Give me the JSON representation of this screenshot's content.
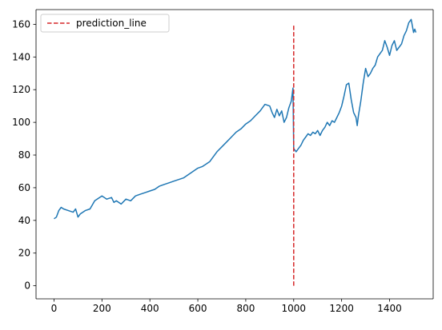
{
  "chart_data": {
    "type": "line",
    "title": "",
    "xlabel": "",
    "ylabel": "",
    "xlim": [
      -75,
      1582
    ],
    "ylim": [
      -8,
      169
    ],
    "xticks": [
      0,
      200,
      400,
      600,
      800,
      1000,
      1200,
      1400
    ],
    "yticks": [
      0,
      20,
      40,
      60,
      80,
      100,
      120,
      140,
      160
    ],
    "grid": false,
    "legend_position": "top-left",
    "series": [
      {
        "name": "",
        "color": "#1f77b4",
        "style": "solid",
        "points": [
          [
            0,
            41
          ],
          [
            10,
            42
          ],
          [
            20,
            46
          ],
          [
            30,
            48
          ],
          [
            40,
            47
          ],
          [
            60,
            46
          ],
          [
            80,
            45
          ],
          [
            90,
            47
          ],
          [
            100,
            42
          ],
          [
            110,
            44
          ],
          [
            130,
            46
          ],
          [
            150,
            47
          ],
          [
            170,
            52
          ],
          [
            190,
            54
          ],
          [
            200,
            55
          ],
          [
            220,
            53
          ],
          [
            240,
            54
          ],
          [
            250,
            51
          ],
          [
            260,
            52
          ],
          [
            280,
            50
          ],
          [
            300,
            53
          ],
          [
            320,
            52
          ],
          [
            340,
            55
          ],
          [
            360,
            56
          ],
          [
            380,
            57
          ],
          [
            400,
            58
          ],
          [
            420,
            59
          ],
          [
            440,
            61
          ],
          [
            460,
            62
          ],
          [
            480,
            63
          ],
          [
            500,
            64
          ],
          [
            520,
            65
          ],
          [
            540,
            66
          ],
          [
            560,
            68
          ],
          [
            580,
            70
          ],
          [
            600,
            72
          ],
          [
            620,
            73
          ],
          [
            640,
            75
          ],
          [
            650,
            76
          ],
          [
            660,
            78
          ],
          [
            680,
            82
          ],
          [
            700,
            85
          ],
          [
            720,
            88
          ],
          [
            740,
            91
          ],
          [
            760,
            94
          ],
          [
            780,
            96
          ],
          [
            800,
            99
          ],
          [
            820,
            101
          ],
          [
            840,
            104
          ],
          [
            860,
            107
          ],
          [
            880,
            111
          ],
          [
            900,
            110
          ],
          [
            910,
            106
          ],
          [
            920,
            103
          ],
          [
            930,
            108
          ],
          [
            940,
            104
          ],
          [
            950,
            107
          ],
          [
            960,
            100
          ],
          [
            970,
            103
          ],
          [
            980,
            109
          ],
          [
            990,
            113
          ],
          [
            997,
            121
          ],
          [
            1000,
            84
          ],
          [
            1010,
            82
          ],
          [
            1020,
            84
          ],
          [
            1030,
            86
          ],
          [
            1040,
            89
          ],
          [
            1050,
            91
          ],
          [
            1060,
            93
          ],
          [
            1070,
            92
          ],
          [
            1080,
            94
          ],
          [
            1090,
            93
          ],
          [
            1100,
            95
          ],
          [
            1110,
            92
          ],
          [
            1120,
            95
          ],
          [
            1130,
            97
          ],
          [
            1140,
            100
          ],
          [
            1150,
            98
          ],
          [
            1160,
            101
          ],
          [
            1170,
            100
          ],
          [
            1180,
            103
          ],
          [
            1190,
            106
          ],
          [
            1200,
            110
          ],
          [
            1210,
            116
          ],
          [
            1220,
            123
          ],
          [
            1230,
            124
          ],
          [
            1240,
            114
          ],
          [
            1250,
            106
          ],
          [
            1260,
            103
          ],
          [
            1265,
            98
          ],
          [
            1270,
            104
          ],
          [
            1280,
            113
          ],
          [
            1290,
            124
          ],
          [
            1300,
            133
          ],
          [
            1310,
            128
          ],
          [
            1320,
            130
          ],
          [
            1330,
            133
          ],
          [
            1340,
            135
          ],
          [
            1350,
            140
          ],
          [
            1360,
            142
          ],
          [
            1370,
            144
          ],
          [
            1380,
            150
          ],
          [
            1390,
            146
          ],
          [
            1400,
            141
          ],
          [
            1410,
            147
          ],
          [
            1420,
            150
          ],
          [
            1430,
            144
          ],
          [
            1440,
            146
          ],
          [
            1450,
            148
          ],
          [
            1460,
            153
          ],
          [
            1470,
            156
          ],
          [
            1480,
            161
          ],
          [
            1490,
            163
          ],
          [
            1500,
            155
          ],
          [
            1505,
            157
          ],
          [
            1510,
            155
          ]
        ]
      },
      {
        "name": "prediction_line",
        "color": "#d62728",
        "style": "dashed",
        "points": [
          [
            1000,
            0
          ],
          [
            1000,
            160
          ]
        ]
      }
    ]
  }
}
